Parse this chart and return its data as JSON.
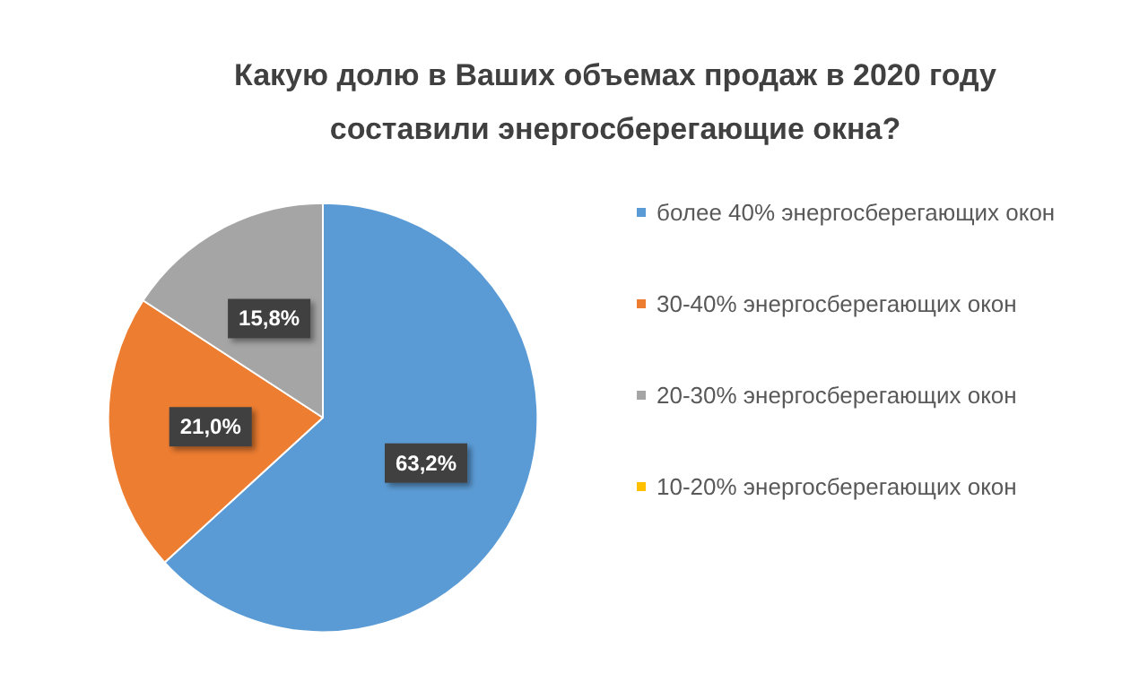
{
  "chart_data": {
    "type": "pie",
    "title": "Какую долю в Ваших объемах продаж в 2020 году\nсоставили энергосберегающие окна?",
    "categories": [
      "более 40% энергосберегающих окон",
      "30-40% энергосберегающих окон",
      "20-30% энергосберегающих окон",
      "10-20% энергосберегающих окон"
    ],
    "values": [
      63.2,
      21.0,
      15.8,
      0
    ],
    "colors": [
      "#5b9bd5",
      "#ed7d31",
      "#a5a5a5",
      "#ffc000"
    ],
    "value_labels": [
      "63,2%",
      "21,0%",
      "15,8%",
      null
    ],
    "legend": "right"
  }
}
